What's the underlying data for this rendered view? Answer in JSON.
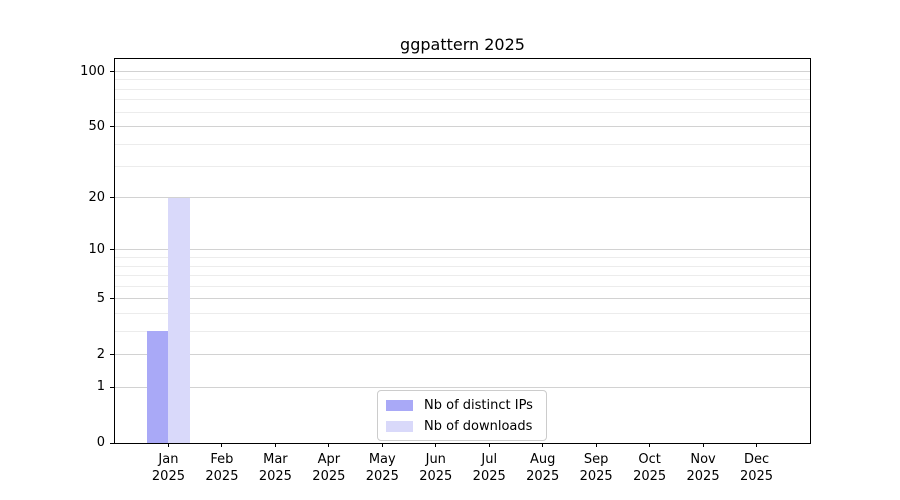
{
  "figure": {
    "background": "#ffffff",
    "axis_color": "#000000",
    "text_color": "#000000"
  },
  "chart_data": {
    "type": "bar",
    "title": "ggpattern 2025",
    "categories": [
      "Jan",
      "Feb",
      "Mar",
      "Apr",
      "May",
      "Jun",
      "Jul",
      "Aug",
      "Sep",
      "Oct",
      "Nov",
      "Dec"
    ],
    "category_year": "2025",
    "series": [
      {
        "name": "Nb of distinct IPs",
        "color": "#a9a9f7",
        "values": [
          3,
          0,
          0,
          0,
          0,
          0,
          0,
          0,
          0,
          0,
          0,
          0
        ]
      },
      {
        "name": "Nb of downloads",
        "color": "#d9d9fa",
        "values": [
          20,
          0,
          0,
          0,
          0,
          0,
          0,
          0,
          0,
          0,
          0,
          0
        ]
      }
    ],
    "xlabel": "",
    "ylabel": "",
    "yscale": "log1p",
    "ylim": [
      0,
      117
    ],
    "yticks": [
      0,
      1,
      2,
      5,
      10,
      20,
      50,
      100
    ],
    "minor_yticks": [
      3,
      4,
      6,
      7,
      8,
      9,
      30,
      40,
      60,
      70,
      80,
      90
    ],
    "grid": {
      "major_color": "#d2d2d2",
      "minor_color": "#ececec"
    },
    "legend": {
      "position": "lower center",
      "border_color": "#cccccc"
    }
  }
}
